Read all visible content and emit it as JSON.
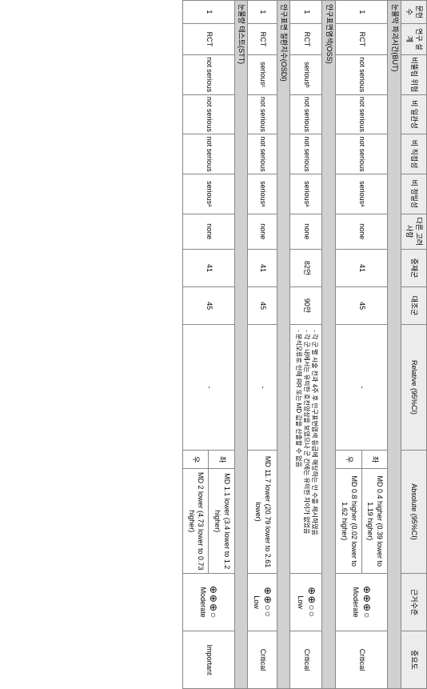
{
  "headers": {
    "num": "문헌 수",
    "design": "연구 설계",
    "bias": "비뚤림 위험",
    "inconsistency": "비 일관성",
    "indirectness": "비 직접성",
    "imprecision": "비 정밀성",
    "other": "다른 고려 사항",
    "intervention": "중재군",
    "control": "대조군",
    "relative": "Relative (95%CI)",
    "absolute": "Absolute (95%CI)",
    "certainty": "근거수준",
    "importance": "중요도"
  },
  "sections": [
    {
      "title": "눈물막 파괴시간(BUT)",
      "rows": [
        {
          "num": "1",
          "design": "RCT",
          "bias": "not serious",
          "incons": "not serious",
          "indir": "not serious",
          "imprec": "seriousᵃ",
          "other": "none",
          "int": "41",
          "ctrl": "45",
          "rel": "-",
          "abs_split": true,
          "abs1_label": "좌",
          "abs1": "MD 0.4 higher (0.39 lower to 1.19 higher)",
          "abs2_label": "우",
          "abs2": "MD 0.8 higher (0.02 lower to 1.62 higher)",
          "cert_sym": "⊕⊕⊕○",
          "cert": "Moderate",
          "imp": "Critical"
        }
      ]
    },
    {
      "title": "안구표면염색(OSS)",
      "rows": [
        {
          "num": "1",
          "design": "RCT",
          "bias": "seriousᵇ",
          "incons": "not serious",
          "indir": "not serious",
          "imprec": "seriousᵃ",
          "other": "none",
          "int": "82안",
          "ctrl": "90안",
          "rel_wide": "- 각 군 별 시술 전과 4주 후 안구표면염색 등급에 해당하는 안 수를 제시하였음\n- 각 군 내에서는 유의한 호전양상을 보였으나 군 간에는 유의한 차이가 없었음\n- 분석오류로 인해 RR 또는 MD 값을 산출할 수 없음",
          "cert_sym": "⊕⊕○○",
          "cert": "Low",
          "imp": "Critical"
        }
      ]
    },
    {
      "title": "안구표면 질환지수(OSDI)",
      "rows": [
        {
          "num": "1",
          "design": "RCT",
          "bias": "seriousᶜ",
          "incons": "not serious",
          "indir": "not serious",
          "imprec": "seriousᵃ",
          "other": "none",
          "int": "41",
          "ctrl": "45",
          "rel": "-",
          "abs_single": "MD 11.7 lower (20.79 lower to 2.61 lower)",
          "cert_sym": "⊕⊕○○",
          "cert": "Low",
          "imp": "Critical"
        }
      ]
    },
    {
      "title": "눈물량 테스트(STT)",
      "rows": [
        {
          "num": "1",
          "design": "RCT",
          "bias": "not serious",
          "incons": "not serious",
          "indir": "not serious",
          "imprec": "seriousᵃ",
          "other": "none",
          "int": "41",
          "ctrl": "45",
          "rel": "-",
          "abs_split": true,
          "abs1_label": "좌",
          "abs1": "MD 1.1 lower (3.4 lower to 1.2 higher)",
          "abs2_label": "우",
          "abs2": "MD 2 lower (4.73 lower to 0.73 higher)",
          "cert_sym": "⊕⊕⊕○",
          "cert": "Moderate",
          "imp": "Important"
        }
      ]
    }
  ]
}
